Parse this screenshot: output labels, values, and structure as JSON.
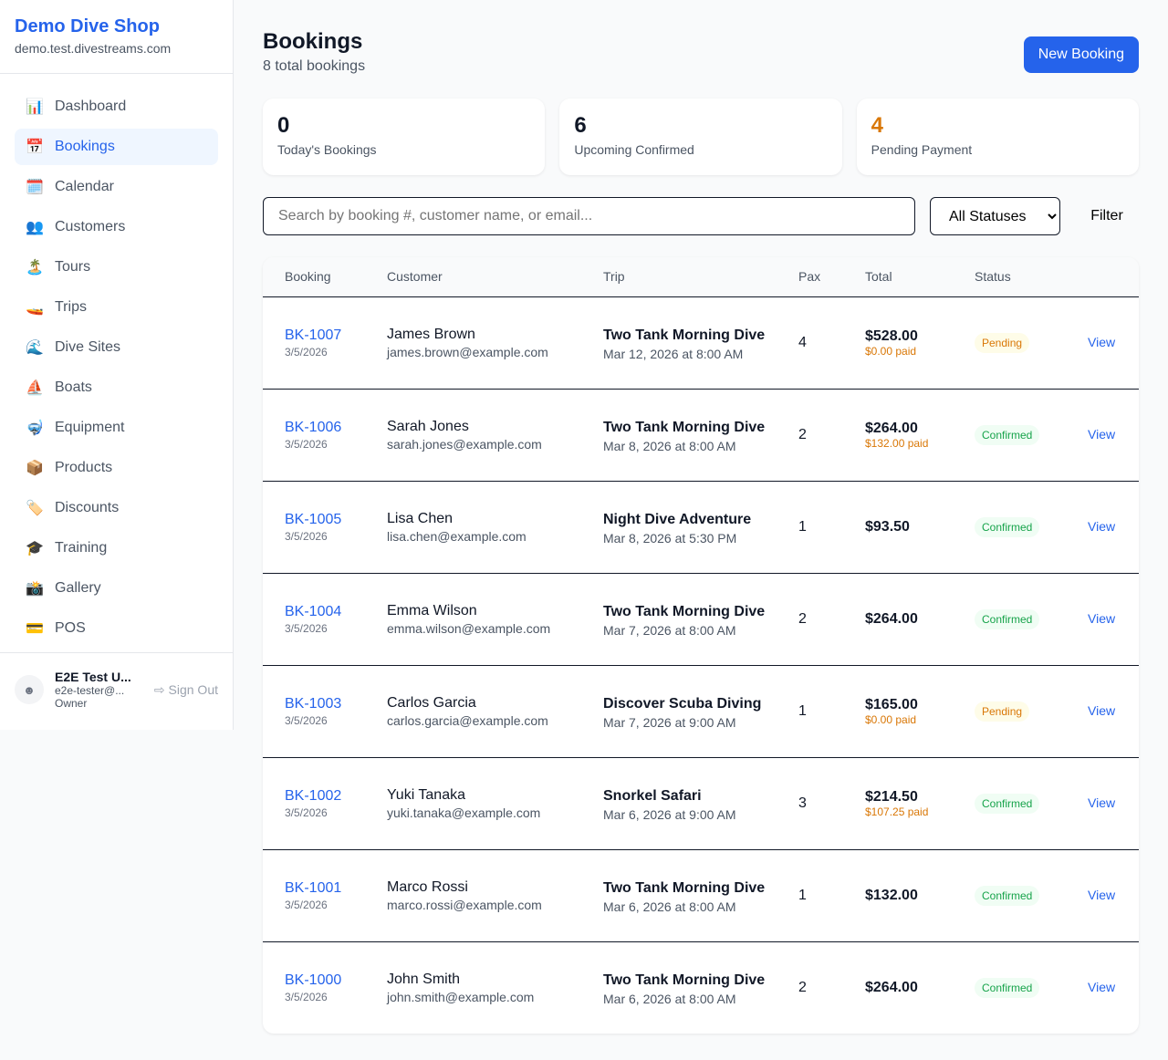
{
  "sidebar": {
    "shop_name": "Demo Dive Shop",
    "domain": "demo.test.divestreams.com",
    "items": [
      {
        "label": "Dashboard",
        "icon": "📊",
        "name": "dashboard"
      },
      {
        "label": "Bookings",
        "icon": "📅",
        "name": "bookings",
        "active": true
      },
      {
        "label": "Calendar",
        "icon": "🗓️",
        "name": "calendar"
      },
      {
        "label": "Customers",
        "icon": "👥",
        "name": "customers"
      },
      {
        "label": "Tours",
        "icon": "🏝️",
        "name": "tours"
      },
      {
        "label": "Trips",
        "icon": "🚤",
        "name": "trips"
      },
      {
        "label": "Dive Sites",
        "icon": "🌊",
        "name": "dive-sites"
      },
      {
        "label": "Boats",
        "icon": "⛵",
        "name": "boats"
      },
      {
        "label": "Equipment",
        "icon": "🤿",
        "name": "equipment"
      },
      {
        "label": "Products",
        "icon": "📦",
        "name": "products"
      },
      {
        "label": "Discounts",
        "icon": "🏷️",
        "name": "discounts"
      },
      {
        "label": "Training",
        "icon": "🎓",
        "name": "training"
      },
      {
        "label": "Gallery",
        "icon": "📸",
        "name": "gallery"
      },
      {
        "label": "POS",
        "icon": "💳",
        "name": "pos"
      }
    ],
    "user": {
      "name": "E2E Test U...",
      "email": "e2e-tester@...",
      "role": "Owner",
      "sign_out": "Sign Out"
    }
  },
  "header": {
    "title": "Bookings",
    "subtitle": "8 total bookings",
    "new_button": "New Booking"
  },
  "stats": [
    {
      "value": "0",
      "label": "Today's Bookings",
      "color": "#111827"
    },
    {
      "value": "6",
      "label": "Upcoming Confirmed",
      "color": "#111827"
    },
    {
      "value": "4",
      "label": "Pending Payment",
      "color": "#d97706"
    }
  ],
  "filters": {
    "search_placeholder": "Search by booking #, customer name, or email...",
    "status_selected": "All Statuses",
    "filter_button": "Filter"
  },
  "table": {
    "columns": [
      "Booking",
      "Customer",
      "Trip",
      "Pax",
      "Total",
      "Status",
      ""
    ],
    "rows": [
      {
        "id": "BK-1007",
        "date": "3/5/2026",
        "customer": "James Brown",
        "email": "james.brown@example.com",
        "trip": "Two Tank Morning Dive",
        "trip_date": "Mar 12, 2026 at 8:00 AM",
        "pax": "4",
        "total": "$528.00",
        "paid": "$0.00 paid",
        "status": "Pending",
        "action": "View"
      },
      {
        "id": "BK-1006",
        "date": "3/5/2026",
        "customer": "Sarah Jones",
        "email": "sarah.jones@example.com",
        "trip": "Two Tank Morning Dive",
        "trip_date": "Mar 8, 2026 at 8:00 AM",
        "pax": "2",
        "total": "$264.00",
        "paid": "$132.00 paid",
        "status": "Confirmed",
        "action": "View"
      },
      {
        "id": "BK-1005",
        "date": "3/5/2026",
        "customer": "Lisa Chen",
        "email": "lisa.chen@example.com",
        "trip": "Night Dive Adventure",
        "trip_date": "Mar 8, 2026 at 5:30 PM",
        "pax": "1",
        "total": "$93.50",
        "paid": "",
        "status": "Confirmed",
        "action": "View"
      },
      {
        "id": "BK-1004",
        "date": "3/5/2026",
        "customer": "Emma Wilson",
        "email": "emma.wilson@example.com",
        "trip": "Two Tank Morning Dive",
        "trip_date": "Mar 7, 2026 at 8:00 AM",
        "pax": "2",
        "total": "$264.00",
        "paid": "",
        "status": "Confirmed",
        "action": "View"
      },
      {
        "id": "BK-1003",
        "date": "3/5/2026",
        "customer": "Carlos Garcia",
        "email": "carlos.garcia@example.com",
        "trip": "Discover Scuba Diving",
        "trip_date": "Mar 7, 2026 at 9:00 AM",
        "pax": "1",
        "total": "$165.00",
        "paid": "$0.00 paid",
        "status": "Pending",
        "action": "View"
      },
      {
        "id": "BK-1002",
        "date": "3/5/2026",
        "customer": "Yuki Tanaka",
        "email": "yuki.tanaka@example.com",
        "trip": "Snorkel Safari",
        "trip_date": "Mar 6, 2026 at 9:00 AM",
        "pax": "3",
        "total": "$214.50",
        "paid": "$107.25 paid",
        "status": "Confirmed",
        "action": "View"
      },
      {
        "id": "BK-1001",
        "date": "3/5/2026",
        "customer": "Marco Rossi",
        "email": "marco.rossi@example.com",
        "trip": "Two Tank Morning Dive",
        "trip_date": "Mar 6, 2026 at 8:00 AM",
        "pax": "1",
        "total": "$132.00",
        "paid": "",
        "status": "Confirmed",
        "action": "View"
      },
      {
        "id": "BK-1000",
        "date": "3/5/2026",
        "customer": "John Smith",
        "email": "john.smith@example.com",
        "trip": "Two Tank Morning Dive",
        "trip_date": "Mar 6, 2026 at 8:00 AM",
        "pax": "2",
        "total": "$264.00",
        "paid": "",
        "status": "Confirmed",
        "action": "View"
      }
    ]
  }
}
